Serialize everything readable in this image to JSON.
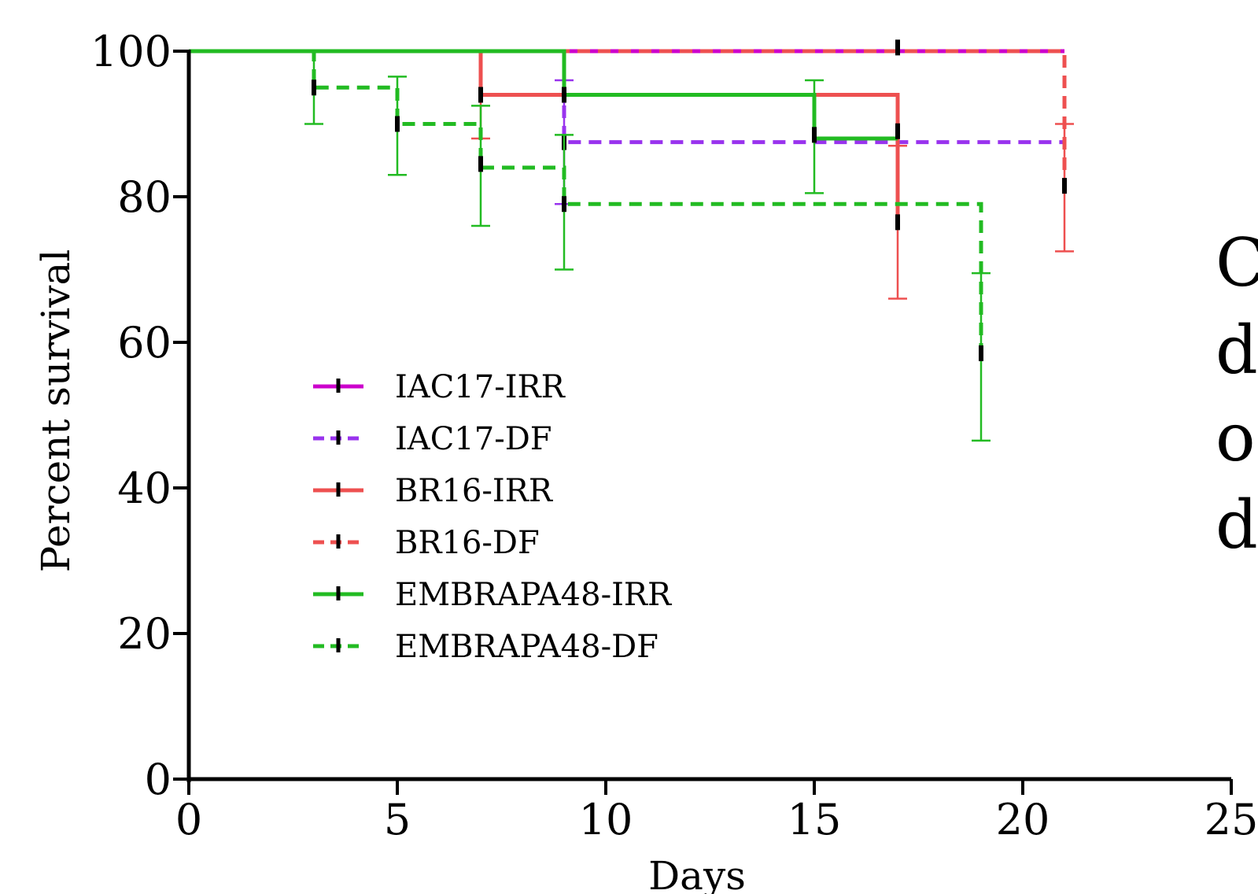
{
  "chart_data": {
    "type": "line",
    "subtype": "kaplan-meier survival step curves with error bars",
    "title": "",
    "xlabel": "Days",
    "ylabel": "Percent survival",
    "xlim": [
      0,
      25
    ],
    "ylim": [
      0,
      100
    ],
    "xticks": [
      "0",
      "5",
      "10",
      "15",
      "20",
      "25"
    ],
    "yticks": [
      "0",
      "20",
      "40",
      "60",
      "80",
      "100"
    ],
    "grid": false,
    "legend_position": "center-left",
    "series": [
      {
        "name": "IAC17-IRR",
        "color": "#cc00cc",
        "dash": "solid",
        "steps": [
          [
            0,
            100
          ],
          [
            21,
            100
          ]
        ],
        "censor": [],
        "errors": []
      },
      {
        "name": "IAC17-DF",
        "color": "#9933ee",
        "dash": "dashed",
        "steps": [
          [
            0,
            100
          ],
          [
            9,
            87.5
          ],
          [
            21,
            87.5
          ]
        ],
        "censor": [
          [
            9,
            87.5
          ]
        ],
        "errors": [
          [
            9,
            79,
            96
          ]
        ]
      },
      {
        "name": "BR16-IRR",
        "color": "#ee5050",
        "dash": "solid",
        "steps": [
          [
            0,
            100
          ],
          [
            7,
            94
          ],
          [
            17,
            76
          ],
          [
            17,
            76
          ]
        ],
        "censor": [
          [
            7,
            94
          ],
          [
            17,
            76.5
          ]
        ],
        "errors": [
          [
            7,
            88,
            100
          ],
          [
            17,
            66,
            87
          ]
        ]
      },
      {
        "name": "BR16-DF",
        "color": "#ee5050",
        "dash": "dashed",
        "steps": [
          [
            0,
            100
          ],
          [
            21,
            81.5
          ],
          [
            21,
            81.5
          ]
        ],
        "censor": [
          [
            17,
            100.5
          ],
          [
            21,
            81.5
          ]
        ],
        "errors": [
          [
            21,
            72.5,
            90
          ]
        ]
      },
      {
        "name": "EMBRAPA48-IRR",
        "color": "#22bb22",
        "dash": "solid",
        "steps": [
          [
            0,
            100
          ],
          [
            9,
            94
          ],
          [
            15,
            88
          ],
          [
            17,
            88
          ]
        ],
        "censor": [
          [
            9,
            94
          ],
          [
            15,
            88.5
          ],
          [
            17,
            89
          ]
        ],
        "errors": [
          [
            15,
            80.5,
            96
          ]
        ]
      },
      {
        "name": "EMBRAPA48-DF",
        "color": "#22bb22",
        "dash": "dashed",
        "steps": [
          [
            0,
            100
          ],
          [
            3,
            95
          ],
          [
            5,
            90
          ],
          [
            7,
            84
          ],
          [
            9,
            79
          ],
          [
            19,
            58.5
          ],
          [
            19,
            58.5
          ]
        ],
        "censor": [
          [
            3,
            95
          ],
          [
            5,
            90
          ],
          [
            7,
            84.5
          ],
          [
            9,
            79
          ],
          [
            19,
            58.5
          ]
        ],
        "errors": [
          [
            3,
            90,
            100
          ],
          [
            5,
            83,
            96.5
          ],
          [
            7,
            76,
            92.5
          ],
          [
            9,
            70,
            88.5
          ],
          [
            19,
            46.5,
            69.5
          ]
        ]
      }
    ]
  },
  "side_text": [
    "C",
    "d",
    "o",
    "d"
  ]
}
